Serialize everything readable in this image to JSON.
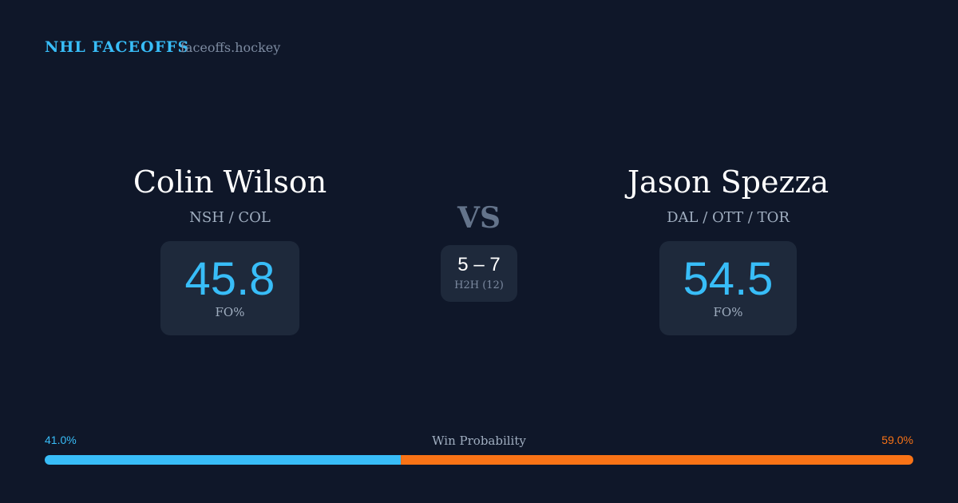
{
  "header": {
    "brand": "NHL FACEOFFS",
    "site": "faceoffs.hockey"
  },
  "players": [
    {
      "name": "Colin Wilson",
      "teams": "NSH / COL",
      "fo_pct": 45.8,
      "fo_label": "FO%"
    },
    {
      "name": "Jason Spezza",
      "teams": "DAL / OTT / TOR",
      "fo_pct": 54.5,
      "fo_label": "FO%"
    }
  ],
  "vs": "VS",
  "h2h": {
    "score": "5 – 7",
    "label": "H2H (12)"
  },
  "win_probability": {
    "label": "Win Probability",
    "values": [
      41,
      59
    ],
    "value_labels": [
      "41.0%",
      "59.0%"
    ],
    "colors": [
      "#38bdf8",
      "#f97316"
    ]
  }
}
